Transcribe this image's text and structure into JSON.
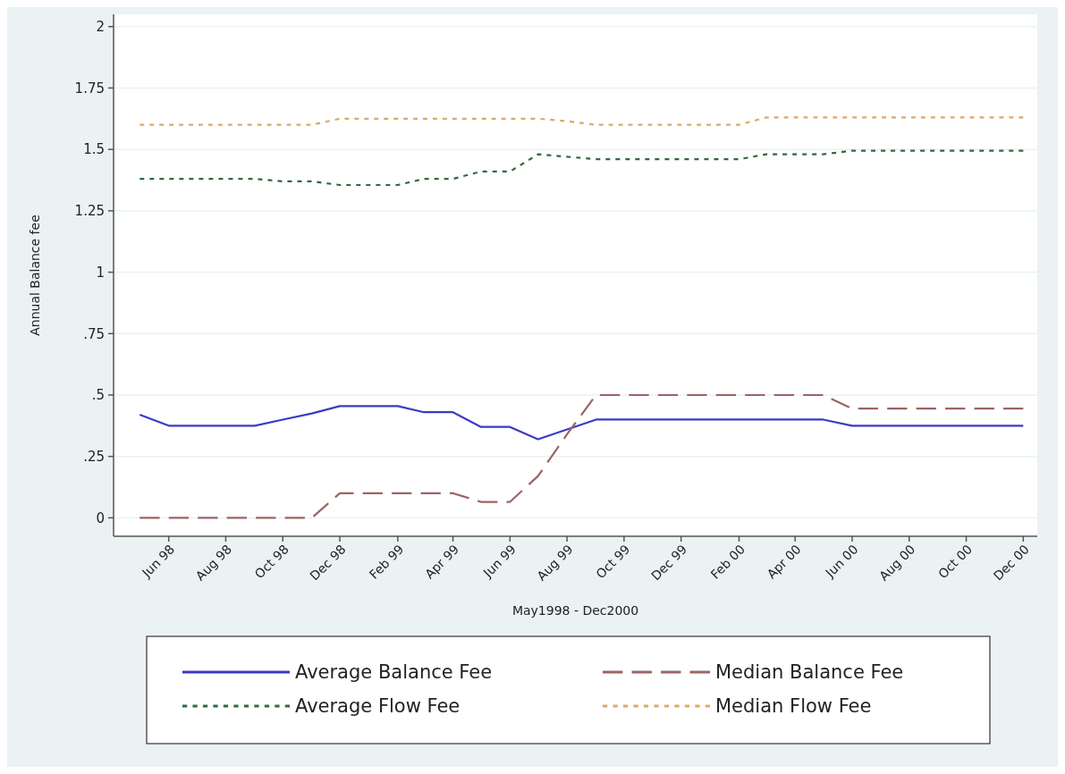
{
  "chart_data": {
    "type": "line",
    "xlabel": "May1998 - Dec2000",
    "ylabel": "Annual Balance fee",
    "x": [
      "1998-05",
      "1998-06",
      "1998-07",
      "1998-08",
      "1998-09",
      "1998-10",
      "1998-11",
      "1998-12",
      "1999-01",
      "1999-02",
      "1999-03",
      "1999-04",
      "1999-05",
      "1999-06",
      "1999-07",
      "1999-08",
      "1999-09",
      "1999-10",
      "1999-11",
      "1999-12",
      "2000-01",
      "2000-02",
      "2000-03",
      "2000-04",
      "2000-05",
      "2000-06",
      "2000-07",
      "2000-08",
      "2000-09",
      "2000-10",
      "2000-11",
      "2000-12"
    ],
    "series": [
      {
        "name": "Average Balance Fee",
        "color": "#3b3bc4",
        "line_style": "solid",
        "values": [
          0.42,
          0.375,
          0.375,
          0.375,
          0.375,
          0.4,
          0.425,
          0.455,
          0.455,
          0.455,
          0.43,
          0.43,
          0.37,
          0.37,
          0.32,
          0.36,
          0.4,
          0.4,
          0.4,
          0.4,
          0.4,
          0.4,
          0.4,
          0.4,
          0.4,
          0.375,
          0.375,
          0.375,
          0.375,
          0.375,
          0.375,
          0.375
        ]
      },
      {
        "name": "Median Balance Fee",
        "color": "#9c6464",
        "line_style": "dashed",
        "values": [
          0,
          0,
          0,
          0,
          0,
          0,
          0,
          0.1,
          0.1,
          0.1,
          0.1,
          0.1,
          0.065,
          0.065,
          0.17,
          0.34,
          0.5,
          0.5,
          0.5,
          0.5,
          0.5,
          0.5,
          0.5,
          0.5,
          0.5,
          0.445,
          0.445,
          0.445,
          0.445,
          0.445,
          0.445,
          0.445
        ]
      },
      {
        "name": "Average Flow Fee",
        "color": "#2f6b3c",
        "line_style": "dotted",
        "values": [
          1.38,
          1.38,
          1.38,
          1.38,
          1.38,
          1.37,
          1.37,
          1.355,
          1.355,
          1.355,
          1.38,
          1.38,
          1.41,
          1.41,
          1.48,
          1.47,
          1.46,
          1.46,
          1.46,
          1.46,
          1.46,
          1.46,
          1.48,
          1.48,
          1.48,
          1.495,
          1.495,
          1.495,
          1.495,
          1.495,
          1.495,
          1.495
        ]
      },
      {
        "name": "Median Flow Fee",
        "color": "#e0a868",
        "line_style": "dotted",
        "values": [
          1.6,
          1.6,
          1.6,
          1.6,
          1.6,
          1.6,
          1.6,
          1.625,
          1.625,
          1.625,
          1.625,
          1.625,
          1.625,
          1.625,
          1.625,
          1.615,
          1.6,
          1.6,
          1.6,
          1.6,
          1.6,
          1.6,
          1.63,
          1.63,
          1.63,
          1.63,
          1.63,
          1.63,
          1.63,
          1.63,
          1.63,
          1.63
        ]
      }
    ],
    "xlim": [
      "1998-04-03",
      "2000-12-16"
    ],
    "xticks": [
      {
        "value": "1998-06",
        "label": "Jun 98"
      },
      {
        "value": "1998-08",
        "label": "Aug 98"
      },
      {
        "value": "1998-10",
        "label": "Oct 98"
      },
      {
        "value": "1998-12",
        "label": "Dec 98"
      },
      {
        "value": "1999-02",
        "label": "Feb 99"
      },
      {
        "value": "1999-04",
        "label": "Apr 99"
      },
      {
        "value": "1999-06",
        "label": "Jun 99"
      },
      {
        "value": "1999-08",
        "label": "Aug 99"
      },
      {
        "value": "1999-10",
        "label": "Oct 99"
      },
      {
        "value": "1999-12",
        "label": "Dec 99"
      },
      {
        "value": "2000-02",
        "label": "Feb 00"
      },
      {
        "value": "2000-04",
        "label": "Apr 00"
      },
      {
        "value": "2000-06",
        "label": "Jun 00"
      },
      {
        "value": "2000-08",
        "label": "Aug 00"
      },
      {
        "value": "2000-10",
        "label": "Oct 00"
      },
      {
        "value": "2000-12",
        "label": "Dec 00"
      }
    ],
    "ylim": [
      -0.075,
      2.05
    ],
    "yticks": [
      0,
      {
        "value": 0.25,
        "label": ".25"
      },
      {
        "value": 0.5,
        "label": ".5"
      },
      {
        "value": 0.75,
        "label": ".75"
      },
      1,
      1.25,
      1.5,
      1.75,
      2
    ],
    "grid": "y",
    "legend": "bottom",
    "marker": "none"
  }
}
